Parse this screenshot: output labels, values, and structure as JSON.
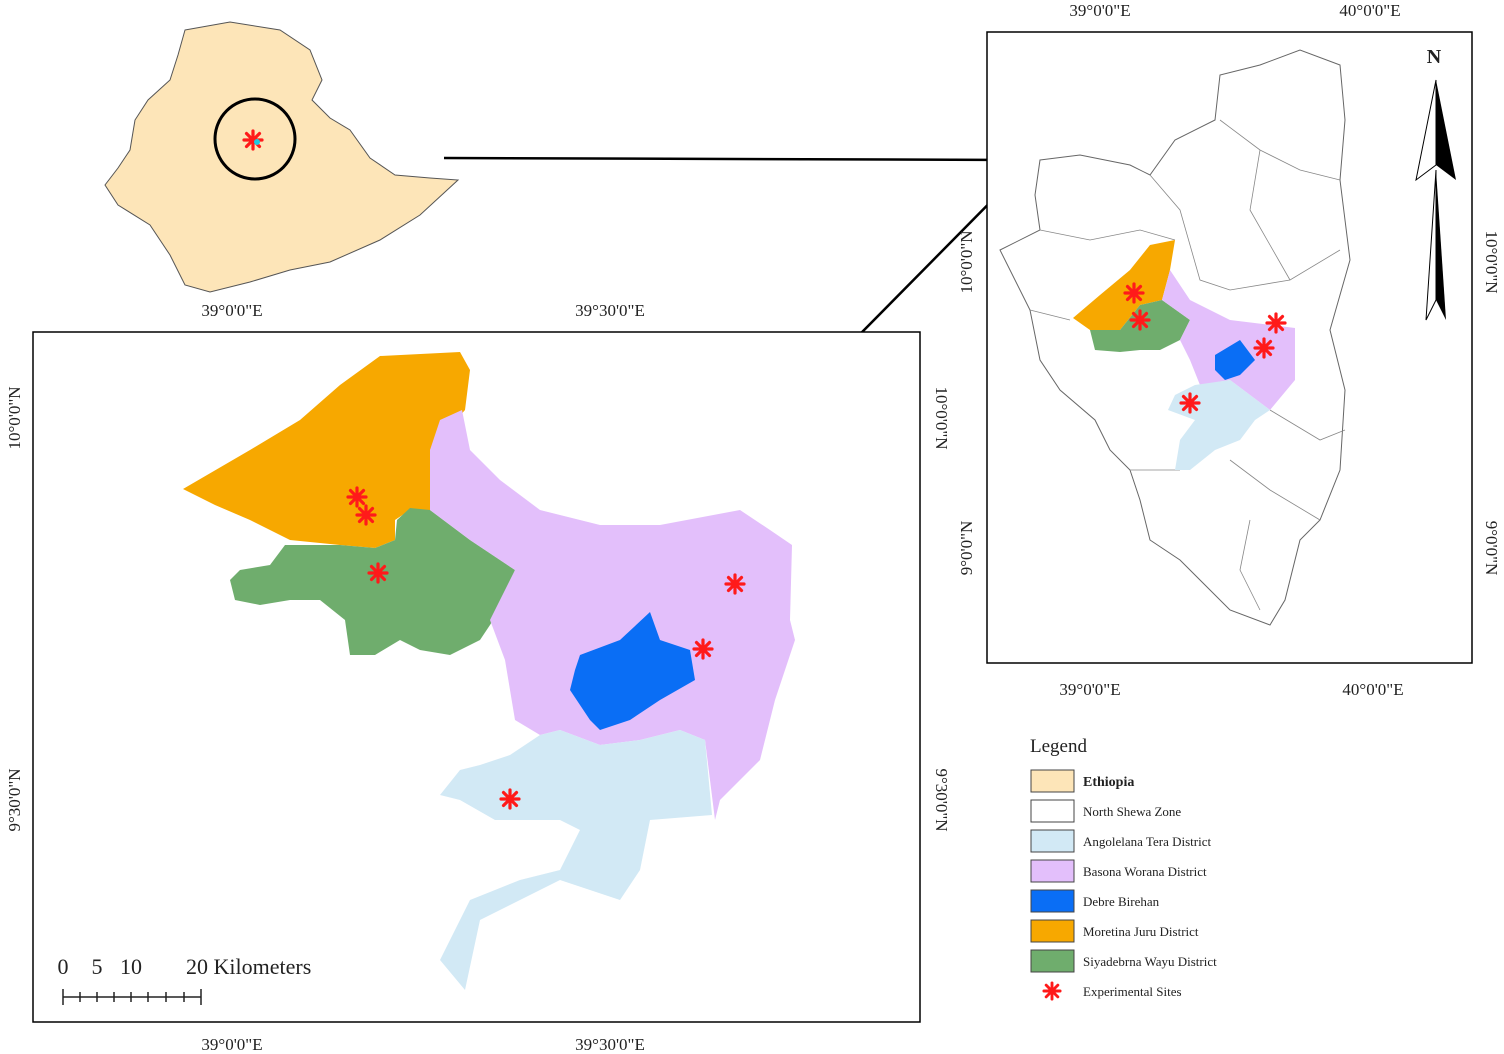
{
  "main_map": {
    "top_labels": [
      "39°0'0\"E",
      "39°30'0\"E"
    ],
    "bottom_labels": [
      "39°0'0\"E",
      "39°30'0\"E"
    ],
    "left_labels": [
      "10°0'0\"N",
      "9°30'0\"N"
    ],
    "right_labels": [
      "10°0'0\"N",
      "9°30'0\"N"
    ],
    "scale_labels": [
      "0",
      "5",
      "10",
      "20 Kilometers"
    ]
  },
  "inset_map": {
    "top_labels": [
      "39°0'0\"E",
      "40°0'0\"E"
    ],
    "bottom_labels": [
      "39°0'0\"E",
      "40°0'0\"E"
    ],
    "left_labels": [
      "10°0'0\"N",
      "9°0'0\"N"
    ],
    "right_labels": [
      "10°0'0\"N",
      "9°0'0\"N"
    ],
    "north": "N"
  },
  "legend": {
    "title": "Legend",
    "items": [
      {
        "label": "Ethiopia",
        "color": "#fde5b8"
      },
      {
        "label": "North Shewa Zone",
        "color": "#ffffff"
      },
      {
        "label": "Angolelana Tera District",
        "color": "#d2e9f5"
      },
      {
        "label": "Basona Worana District",
        "color": "#e3bffb"
      },
      {
        "label": "Debre Birehan",
        "color": "#0a6ef5"
      },
      {
        "label": "Moretina Juru District",
        "color": "#f7a800"
      },
      {
        "label": "Siyadebrna Wayu District",
        "color": "#6fad6d"
      },
      {
        "label": "Experimental Sites",
        "color": "#ff1a1a"
      }
    ]
  }
}
